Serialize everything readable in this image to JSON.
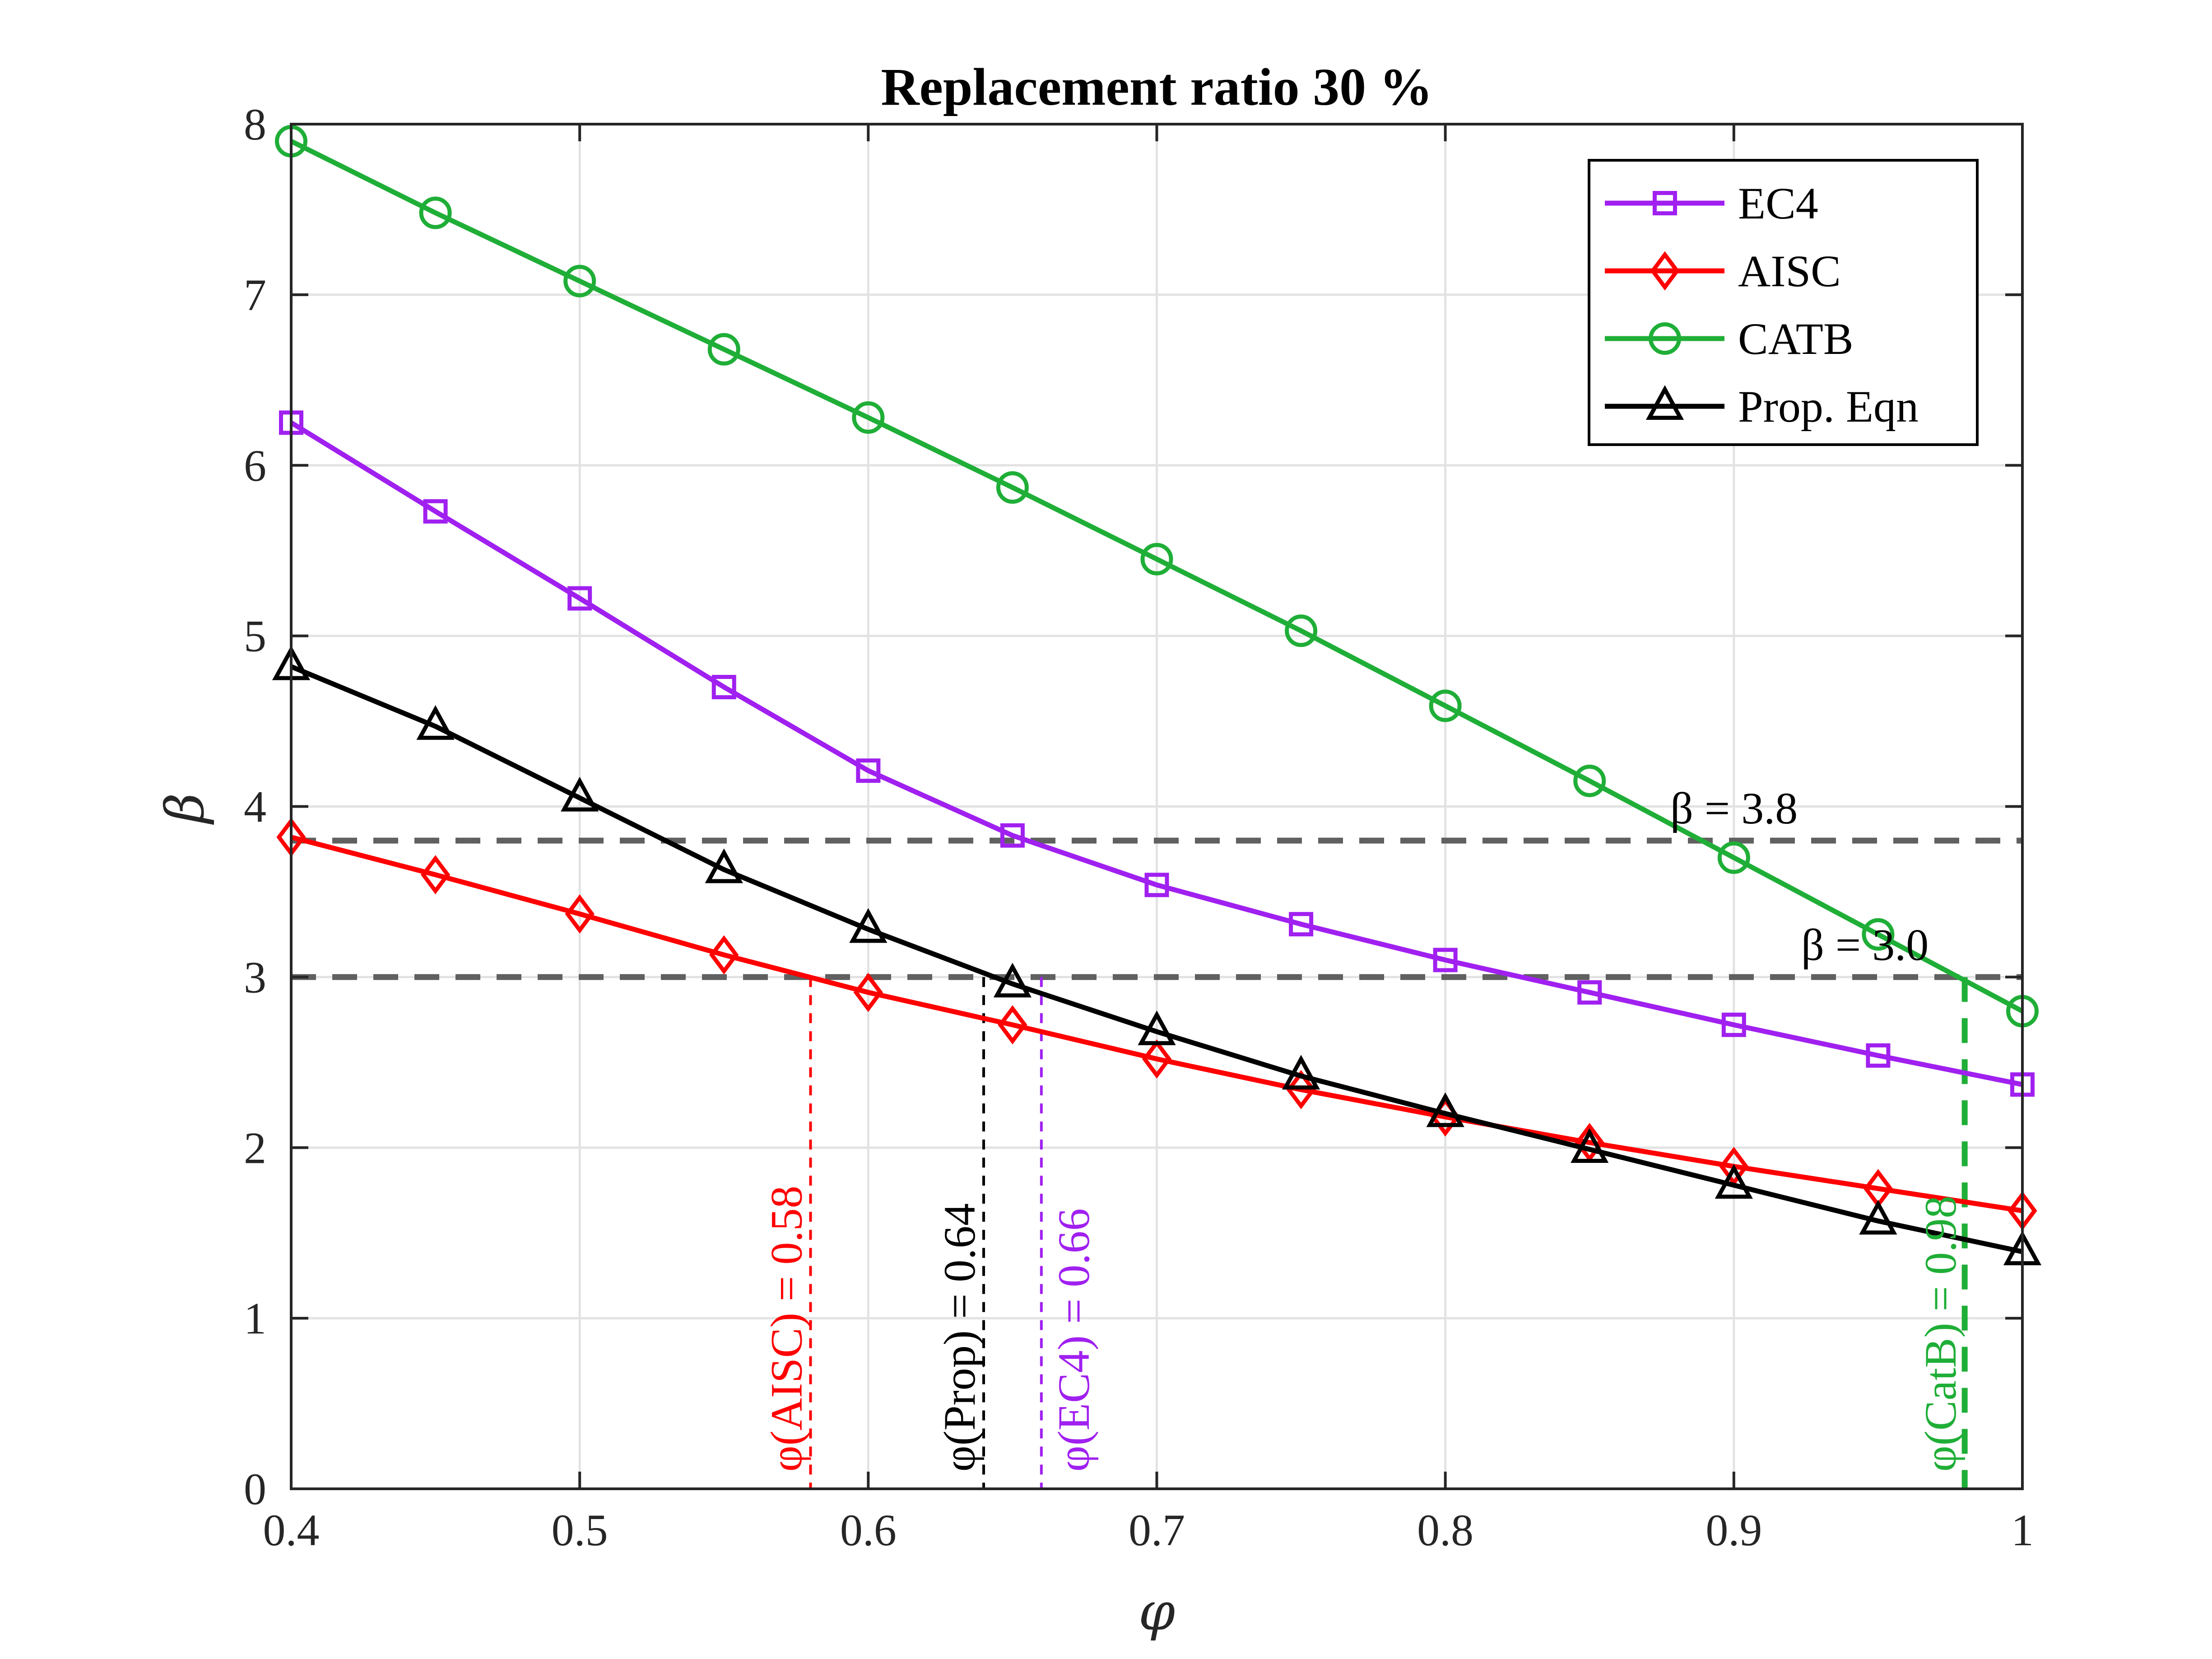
{
  "chart_data": {
    "type": "line",
    "title": "Replacement ratio 30 %",
    "xlabel": "φ",
    "ylabel": "β",
    "xlim": [
      0.4,
      1.0
    ],
    "ylim": [
      0,
      8
    ],
    "xticks": [
      "0.4",
      "0.5",
      "0.6",
      "0.7",
      "0.8",
      "0.9",
      "1"
    ],
    "yticks": [
      "0",
      "1",
      "2",
      "3",
      "4",
      "5",
      "6",
      "7",
      "8"
    ],
    "grid": true,
    "legend_position": "top-right",
    "x": [
      0.4,
      0.45,
      0.5,
      0.55,
      0.6,
      0.65,
      0.7,
      0.75,
      0.8,
      0.85,
      0.9,
      0.95,
      1.0
    ],
    "series": [
      {
        "name": "EC4",
        "color": "#a020f0",
        "marker": "square",
        "values": [
          6.25,
          5.73,
          5.22,
          4.7,
          4.21,
          3.83,
          3.54,
          3.31,
          3.1,
          2.91,
          2.72,
          2.54,
          2.37
        ]
      },
      {
        "name": "AISC",
        "color": "#ff0000",
        "marker": "diamond",
        "values": [
          3.82,
          3.6,
          3.37,
          3.13,
          2.91,
          2.72,
          2.52,
          2.34,
          2.18,
          2.03,
          1.89,
          1.76,
          1.63
        ]
      },
      {
        "name": "CATB",
        "color": "#1fae37",
        "marker": "circle",
        "values": [
          7.9,
          7.48,
          7.08,
          6.68,
          6.28,
          5.87,
          5.45,
          5.03,
          4.59,
          4.15,
          3.7,
          3.25,
          2.8
        ]
      },
      {
        "name": "Prop. Eqn",
        "color": "#000000",
        "marker": "triangle",
        "values": [
          4.82,
          4.47,
          4.05,
          3.63,
          3.28,
          2.96,
          2.68,
          2.42,
          2.2,
          1.99,
          1.78,
          1.57,
          1.39
        ]
      }
    ],
    "reference_lines": [
      {
        "y": 3.8,
        "label": "β = 3.8"
      },
      {
        "y": 3.0,
        "label": "β = 3.0"
      }
    ],
    "vertical_markers": [
      {
        "x": 0.58,
        "label": "φ(AISC) = 0.58",
        "color": "#ff0000"
      },
      {
        "x": 0.64,
        "label": "φ(Prop) = 0.64",
        "color": "#000000"
      },
      {
        "x": 0.66,
        "label": "φ(EC4) = 0.66",
        "color": "#a020f0"
      },
      {
        "x": 0.98,
        "label": "φ(CatB) = 0.98",
        "color": "#1fae37"
      }
    ]
  }
}
